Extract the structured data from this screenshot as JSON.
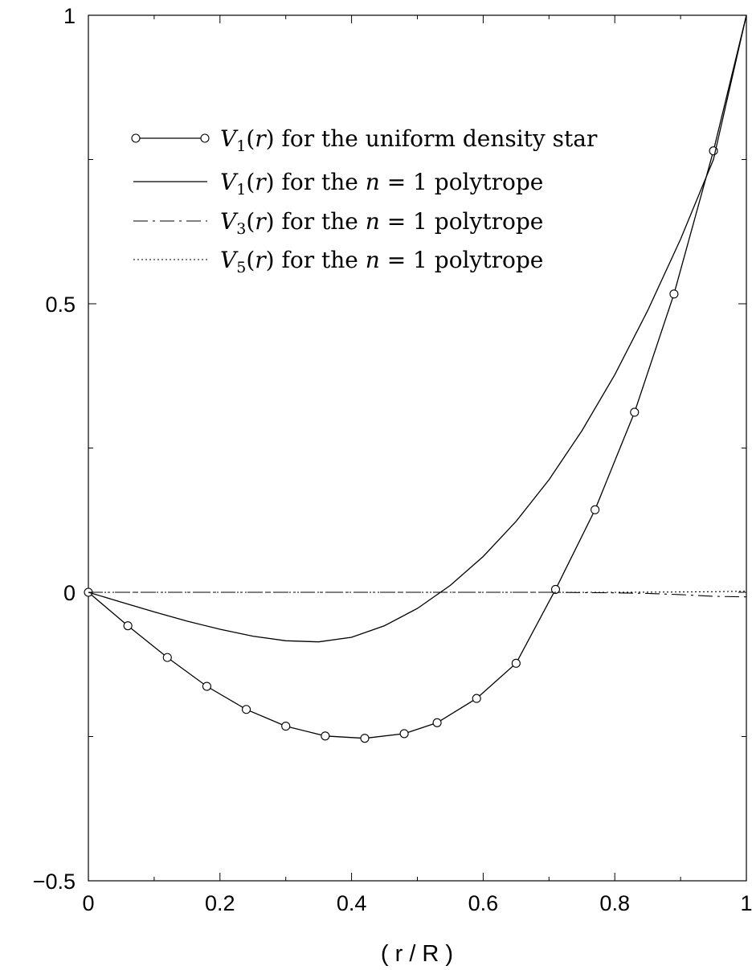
{
  "chart_data": {
    "type": "line",
    "title": "",
    "xlabel": "( r / R )",
    "ylabel": "",
    "xlim": [
      0,
      1
    ],
    "ylim": [
      -0.5,
      1
    ],
    "grid": false,
    "legend_position": "upper-left",
    "x_ticks": [
      {
        "value": 0,
        "label": "0"
      },
      {
        "value": 0.2,
        "label": "0.2"
      },
      {
        "value": 0.4,
        "label": "0.4"
      },
      {
        "value": 0.6,
        "label": "0.6"
      },
      {
        "value": 0.8,
        "label": "0.8"
      },
      {
        "value": 1,
        "label": "1"
      }
    ],
    "y_ticks": [
      {
        "value": -0.5,
        "label": "−0.5"
      },
      {
        "value": 0,
        "label": "0"
      },
      {
        "value": 0.5,
        "label": "0.5"
      },
      {
        "value": 1,
        "label": "1"
      }
    ],
    "y_minor_ticks": [
      -0.25,
      0.25,
      0.75
    ],
    "x_minor_ticks": [
      0.1,
      0.3,
      0.5,
      0.7,
      0.9
    ],
    "series": [
      {
        "name": "V1(r) for the uniform density star",
        "legend": {
          "func": "V",
          "sub": "1",
          "arg": "(r)",
          "rest": " for the uniform density star"
        },
        "style": "solid-circles",
        "x": [
          0,
          0.06,
          0.12,
          0.18,
          0.24,
          0.3,
          0.36,
          0.42,
          0.48,
          0.53,
          0.59,
          0.65,
          0.71,
          0.77,
          0.83,
          0.89,
          0.95,
          1.0
        ],
        "y": [
          0,
          -0.058,
          -0.113,
          -0.163,
          -0.203,
          -0.232,
          -0.249,
          -0.253,
          -0.245,
          -0.226,
          -0.184,
          -0.123,
          0.005,
          0.143,
          0.312,
          0.517,
          0.765,
          1.0
        ],
        "marker_x": [
          0,
          0.06,
          0.12,
          0.18,
          0.24,
          0.3,
          0.36,
          0.42,
          0.48,
          0.53,
          0.59,
          0.65,
          0.71,
          0.77,
          0.83,
          0.89,
          0.95
        ]
      },
      {
        "name": "V1(r) for the n = 1 polytrope",
        "legend": {
          "func": "V",
          "sub": "1",
          "arg": "(r)",
          "rest": " for the ",
          "math": "n = 1",
          "tail": " polytrope"
        },
        "style": "solid",
        "x": [
          0,
          0.05,
          0.1,
          0.15,
          0.2,
          0.25,
          0.3,
          0.35,
          0.4,
          0.45,
          0.5,
          0.55,
          0.6,
          0.65,
          0.7,
          0.75,
          0.8,
          0.85,
          0.9,
          0.95,
          1.0
        ],
        "y": [
          0,
          -0.017,
          -0.034,
          -0.05,
          -0.064,
          -0.076,
          -0.084,
          -0.086,
          -0.078,
          -0.058,
          -0.028,
          0.012,
          0.062,
          0.123,
          0.195,
          0.28,
          0.377,
          0.488,
          0.612,
          0.75,
          1.0
        ]
      },
      {
        "name": "V3(r) for the n = 1 polytrope",
        "legend": {
          "func": "V",
          "sub": "3",
          "arg": "(r)",
          "rest": " for the ",
          "math": "n = 1",
          "tail": " polytrope"
        },
        "style": "dash-dot",
        "x": [
          0,
          0.2,
          0.4,
          0.6,
          0.7,
          0.8,
          0.85,
          0.9,
          0.95,
          1.0
        ],
        "y": [
          0,
          0,
          0,
          0,
          0,
          -0.001,
          -0.002,
          -0.004,
          -0.007,
          -0.008
        ]
      },
      {
        "name": "V5(r) for the n = 1 polytrope",
        "legend": {
          "func": "V",
          "sub": "5",
          "arg": "(r)",
          "rest": " for the ",
          "math": "n = 1",
          "tail": " polytrope"
        },
        "style": "dotted",
        "x": [
          0,
          0.2,
          0.4,
          0.6,
          0.8,
          0.9,
          0.95,
          1.0
        ],
        "y": [
          0,
          0,
          0,
          0,
          0,
          0.0005,
          0.001,
          0.002
        ]
      }
    ]
  }
}
